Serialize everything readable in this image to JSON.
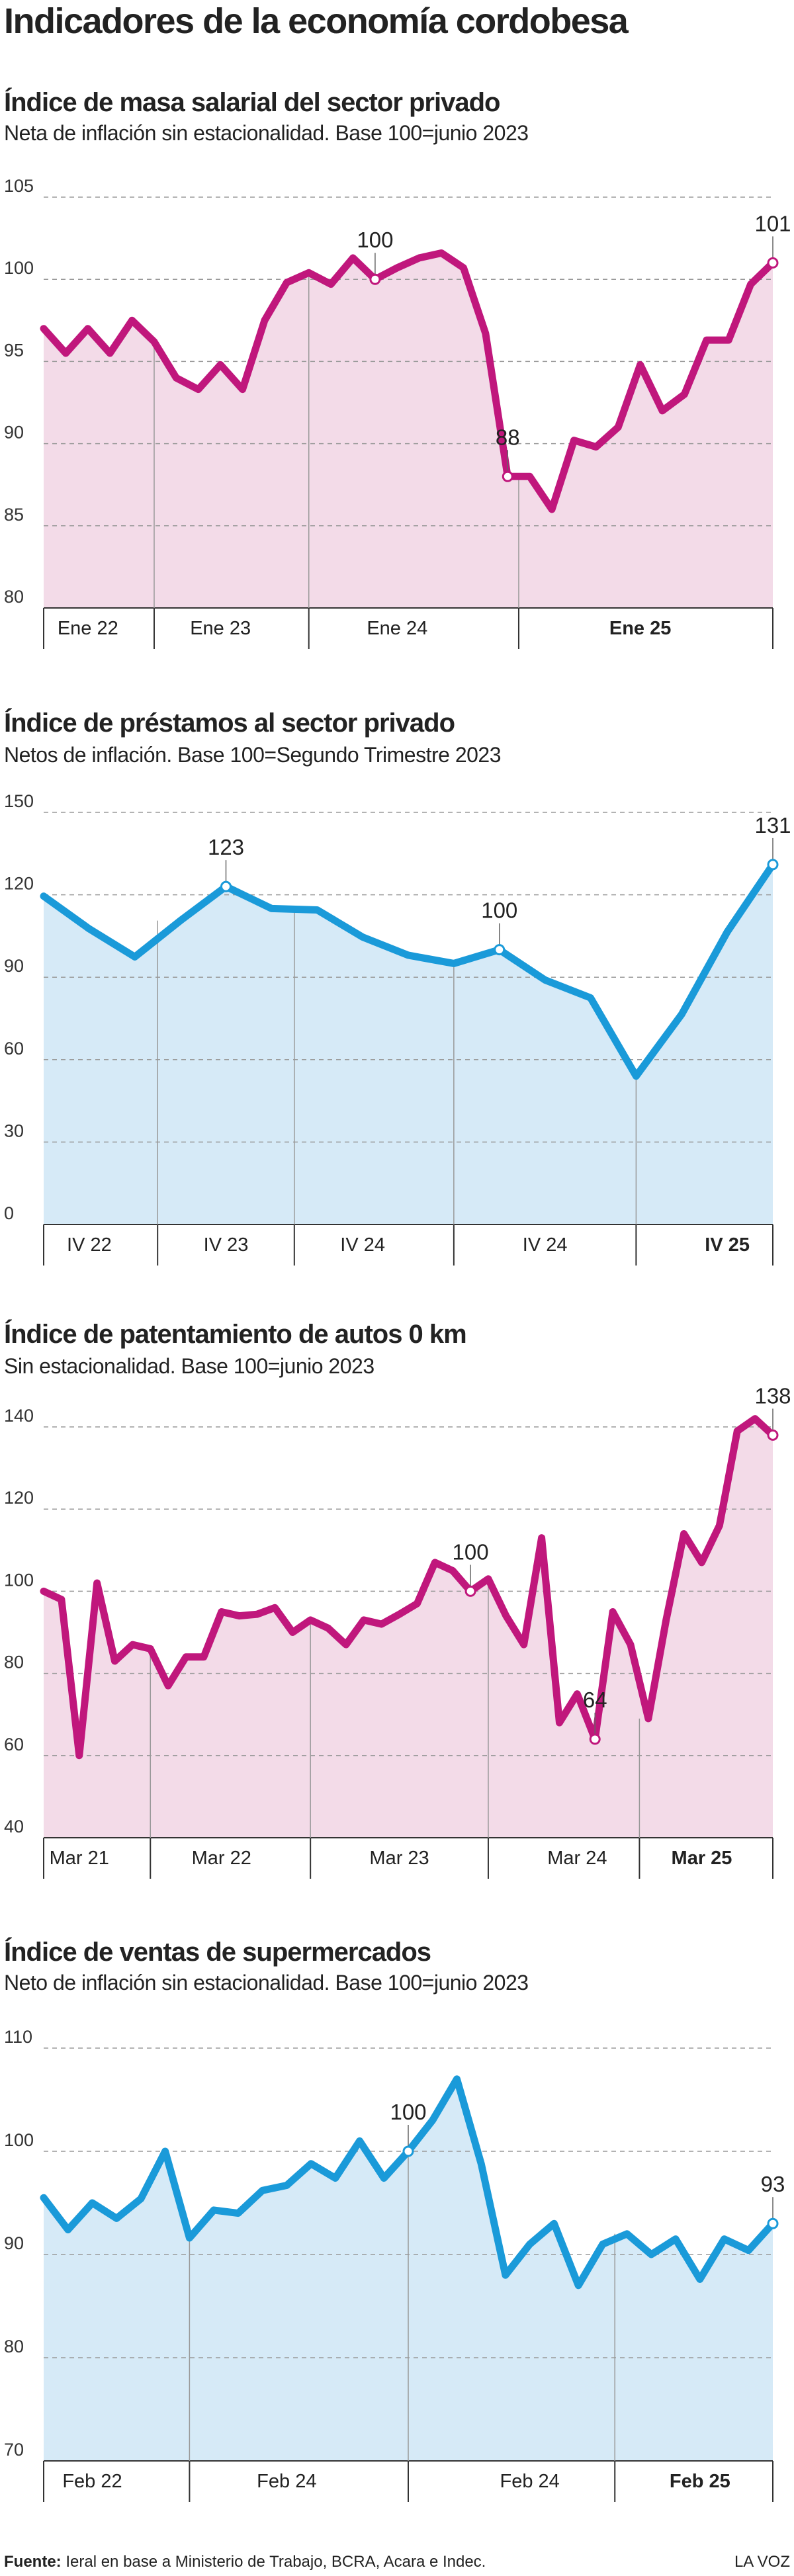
{
  "title": "Indicadores de la economía cordobesa",
  "chart_data": [
    {
      "type": "line",
      "title": "Índice de masa salarial del sector privado",
      "subtitle": "Neta de inflación sin estacionalidad. Base 100=junio 2023",
      "categories": [
        null,
        null,
        "Ene 22",
        null,
        null,
        null,
        null,
        null,
        "Ene 23",
        null,
        null,
        null,
        null,
        null,
        null,
        null,
        "Ene 24",
        null,
        null,
        null,
        null,
        null,
        null,
        null,
        null,
        null,
        null,
        "Ene 25",
        null,
        null,
        null,
        null,
        null,
        null
      ],
      "values": [
        97,
        95.5,
        97,
        95.5,
        97.5,
        96.2,
        94,
        93.3,
        94.8,
        93.3,
        97.5,
        99.8,
        100.4,
        99.7,
        101.3,
        100,
        100.7,
        101.3,
        101.6,
        100.7,
        96.7,
        88,
        88,
        86,
        90.2,
        89.8,
        91,
        94.8,
        92,
        93,
        96.3,
        96.3,
        99.7,
        101
      ],
      "value_labels": [
        null,
        null,
        null,
        null,
        null,
        null,
        null,
        null,
        null,
        null,
        null,
        null,
        null,
        null,
        null,
        "100",
        null,
        null,
        null,
        null,
        null,
        "88",
        null,
        null,
        null,
        null,
        null,
        null,
        null,
        null,
        null,
        null,
        null,
        "101"
      ],
      "color": "#c0177c",
      "fill_color": "#f3dbe8",
      "ylim": [
        80,
        105
      ],
      "yticks": [
        80,
        85,
        90,
        95,
        100,
        105
      ],
      "grid": true
    },
    {
      "type": "line",
      "title": "Índice de préstamos al sector privado",
      "subtitle": "Netos de inflación. Base 100=Segundo Trimestre 2023",
      "categories": [
        null,
        "IV 22",
        null,
        null,
        "IV 23",
        null,
        null,
        "IV 24",
        null,
        null,
        null,
        "IV 24",
        null,
        null,
        null,
        "IV 25",
        null
      ],
      "values": [
        119.5,
        107.6,
        97.4,
        110.6,
        123,
        115,
        114.5,
        104.6,
        98,
        95,
        100,
        89,
        82.5,
        54,
        76.5,
        106.5,
        131
      ],
      "value_labels": [
        null,
        null,
        null,
        null,
        "123",
        null,
        null,
        null,
        null,
        null,
        "100",
        null,
        null,
        null,
        null,
        null,
        "131"
      ],
      "color": "#1a9ad9",
      "fill_color": "#d6eaf7",
      "ylim": [
        0,
        150
      ],
      "yticks": [
        0,
        30,
        60,
        90,
        120,
        150
      ],
      "grid": true
    },
    {
      "type": "line",
      "title": "Índice de patentamiento de autos 0 km",
      "subtitle": "Sin estacionalidad. Base 100=junio 2023",
      "categories": [
        null,
        null,
        "Mar 21",
        null,
        null,
        null,
        null,
        null,
        null,
        null,
        "Mar 22",
        null,
        null,
        null,
        null,
        null,
        null,
        null,
        null,
        null,
        "Mar 23",
        null,
        null,
        null,
        null,
        null,
        null,
        null,
        null,
        null,
        "Mar 24",
        null,
        null,
        null,
        null,
        null,
        null,
        "Mar 25",
        null,
        null,
        null,
        null
      ],
      "values": [
        100,
        98,
        60,
        102,
        83,
        87,
        86,
        77,
        84,
        84,
        95,
        94,
        94.4,
        96,
        90,
        93,
        91,
        87,
        93,
        92,
        94.4,
        97,
        107,
        105,
        100,
        103,
        94,
        87,
        113,
        68,
        75,
        64,
        95,
        87,
        69,
        93,
        114,
        107,
        116,
        139,
        142,
        138
      ],
      "value_labels": [
        null,
        null,
        null,
        null,
        null,
        null,
        null,
        null,
        null,
        null,
        null,
        null,
        null,
        null,
        null,
        null,
        null,
        null,
        null,
        null,
        null,
        null,
        null,
        null,
        "100",
        null,
        null,
        null,
        null,
        null,
        null,
        "64",
        null,
        null,
        null,
        null,
        null,
        null,
        null,
        null,
        null,
        "138"
      ],
      "color": "#c0177c",
      "fill_color": "#f3dbe8",
      "ylim": [
        40,
        140
      ],
      "yticks": [
        40,
        60,
        80,
        100,
        120,
        140
      ],
      "grid": true
    },
    {
      "type": "line",
      "title": "Índice de ventas de supermercados",
      "subtitle": "Neto de inflación sin estacionalidad. Base 100=junio 2023",
      "categories": [
        null,
        null,
        "Feb 22",
        null,
        null,
        null,
        null,
        null,
        null,
        null,
        "Feb 24",
        null,
        null,
        null,
        null,
        null,
        null,
        null,
        null,
        null,
        "Feb 24",
        null,
        null,
        null,
        null,
        null,
        null,
        "Feb 25",
        null,
        null,
        null
      ],
      "values": [
        95.5,
        92.4,
        95,
        93.5,
        95.4,
        100,
        91.6,
        94.3,
        94,
        96.2,
        96.7,
        98.8,
        97.4,
        101,
        97.4,
        100,
        103,
        107,
        98.8,
        88,
        91,
        93,
        87,
        91,
        92,
        90,
        91.5,
        87.6,
        91.5,
        90.4,
        93
      ],
      "value_labels": [
        null,
        null,
        null,
        null,
        null,
        null,
        null,
        null,
        null,
        null,
        null,
        null,
        null,
        null,
        null,
        "100",
        null,
        null,
        null,
        null,
        null,
        null,
        null,
        null,
        null,
        null,
        null,
        null,
        null,
        null,
        "93"
      ],
      "color": "#1a9ad9",
      "fill_color": "#d6eaf7",
      "ylim": [
        70,
        110
      ],
      "yticks": [
        70,
        80,
        90,
        100,
        110
      ],
      "grid": true
    }
  ],
  "source_label": "Fuente:",
  "source": "Ieral en base a Ministerio de Trabajo, BCRA, Acara e Indec.",
  "brand": "LA VOZ"
}
